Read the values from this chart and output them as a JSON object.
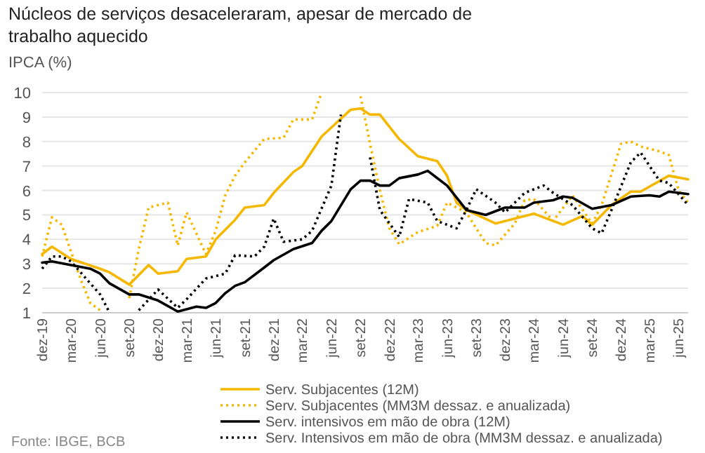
{
  "chart_data": {
    "type": "line",
    "title": "Núcleos de serviços desaceleraram, apesar de mercado de trabalho aquecido",
    "ylabel": "IPCA (%)",
    "annotations": [
      "Fonte: IBGE, BCB"
    ],
    "xlim": [
      "2019-12",
      "2025-07"
    ],
    "xticks": [
      {
        "value": "2019-12",
        "label": "dez-19"
      },
      {
        "value": "2020-03",
        "label": "mar-20"
      },
      {
        "value": "2020-06",
        "label": "jun-20"
      },
      {
        "value": "2020-09",
        "label": "set-20"
      },
      {
        "value": "2020-12",
        "label": "dez-20"
      },
      {
        "value": "2021-03",
        "label": "mar-21"
      },
      {
        "value": "2021-06",
        "label": "jun-21"
      },
      {
        "value": "2021-09",
        "label": "set-21"
      },
      {
        "value": "2021-12",
        "label": "dez-21"
      },
      {
        "value": "2022-03",
        "label": "mar-22"
      },
      {
        "value": "2022-06",
        "label": "jun-22"
      },
      {
        "value": "2022-09",
        "label": "set-22"
      },
      {
        "value": "2022-12",
        "label": "dez-22"
      },
      {
        "value": "2023-03",
        "label": "mar-23"
      },
      {
        "value": "2023-06",
        "label": "jun-23"
      },
      {
        "value": "2023-09",
        "label": "set-23"
      },
      {
        "value": "2023-12",
        "label": "dez-23"
      },
      {
        "value": "2024-03",
        "label": "mar-24"
      },
      {
        "value": "2024-06",
        "label": "jun-24"
      },
      {
        "value": "2024-09",
        "label": "set-24"
      },
      {
        "value": "2024-12",
        "label": "dez-24"
      },
      {
        "value": "2025-03",
        "label": "mar-25"
      },
      {
        "value": "2025-06",
        "label": "jun-25"
      }
    ],
    "ylim": [
      1,
      10
    ],
    "yticks": [
      1,
      2,
      3,
      4,
      5,
      6,
      7,
      8,
      9,
      10
    ],
    "grid": "y",
    "legend": "bottom",
    "marker": "none",
    "series": [
      {
        "name": "Serv. Subjacentes (12M)",
        "color": "#f5b800",
        "line_style": "solid",
        "x": [
          "2019-12",
          "2020-01",
          "2020-03",
          "2020-06",
          "2020-07",
          "2020-09",
          "2020-11",
          "2020-12",
          "2021-02",
          "2021-03",
          "2021-05",
          "2021-06",
          "2021-08",
          "2021-09",
          "2021-11",
          "2021-12",
          "2022-02",
          "2022-03",
          "2022-05",
          "2022-08",
          "2022-09",
          "2022-10",
          "2022-11",
          "2023-01",
          "2023-03",
          "2023-05",
          "2023-06",
          "2023-07",
          "2023-08",
          "2023-11",
          "2024-03",
          "2024-06",
          "2024-08",
          "2024-09",
          "2024-11",
          "2025-01",
          "2025-02",
          "2025-05",
          "2025-07"
        ],
        "values": [
          3.4,
          3.7,
          3.2,
          2.8,
          2.65,
          2.15,
          2.95,
          2.6,
          2.7,
          3.2,
          3.3,
          4.0,
          4.8,
          5.3,
          5.4,
          5.9,
          6.75,
          7.0,
          8.2,
          9.3,
          9.35,
          9.1,
          9.1,
          8.1,
          7.4,
          7.2,
          6.6,
          5.5,
          5.2,
          4.65,
          5.05,
          4.6,
          4.95,
          4.6,
          5.4,
          5.95,
          5.95,
          6.6,
          6.45
        ]
      },
      {
        "name": "Serv. Subjacentes (MM3M dessaz. e anualizada)",
        "color": "#f5b800",
        "line_style": "dotted",
        "x": [
          "2019-12",
          "2020-01",
          "2020-02",
          "2020-03",
          "2020-04",
          "2020-05",
          "2020-06",
          "2020-07",
          "2020-08",
          "2020-09",
          "2020-10",
          "2020-11",
          "2021-01",
          "2021-02",
          "2021-03",
          "2021-05",
          "2021-06",
          "2021-07",
          "2021-08",
          "2021-09",
          "2021-11",
          "2022-01",
          "2022-02",
          "2022-04",
          "2022-05",
          "2022-06",
          "2022-07",
          "2022-08",
          "2022-09",
          "2022-10",
          "2022-11",
          "2022-12",
          "2023-01",
          "2023-03",
          "2023-05",
          "2023-06",
          "2023-08",
          "2023-09",
          "2023-10",
          "2023-11",
          "2024-01",
          "2024-02",
          "2024-03",
          "2024-05",
          "2024-07",
          "2024-09",
          "2024-10",
          "2024-12",
          "2025-01",
          "2025-02",
          "2025-04",
          "2025-05",
          "2025-06",
          "2025-07"
        ],
        "values": [
          3.3,
          4.9,
          4.6,
          3.5,
          2.35,
          1.4,
          1.1,
          null,
          null,
          1.6,
          3.6,
          5.3,
          5.5,
          3.75,
          5.1,
          3.4,
          4.35,
          5.8,
          6.6,
          7.15,
          8.1,
          8.15,
          8.9,
          8.9,
          10,
          null,
          null,
          null,
          9.85,
          7.9,
          6.0,
          4.45,
          3.8,
          4.3,
          4.55,
          5.5,
          5.1,
          4.45,
          3.85,
          3.75,
          4.65,
          5.6,
          5.65,
          4.75,
          5.8,
          4.65,
          5.4,
          7.9,
          8.0,
          7.8,
          7.6,
          7.45,
          6.0,
          5.5
        ]
      },
      {
        "name": "Serv. intensivos em mão de obra (12M)",
        "color": "#000000",
        "line_style": "solid",
        "x": [
          "2019-12",
          "2020-01",
          "2020-03",
          "2020-05",
          "2020-06",
          "2020-07",
          "2020-09",
          "2020-10",
          "2020-12",
          "2021-02",
          "2021-04",
          "2021-05",
          "2021-06",
          "2021-07",
          "2021-08",
          "2021-09",
          "2021-11",
          "2021-12",
          "2022-02",
          "2022-04",
          "2022-05",
          "2022-06",
          "2022-08",
          "2022-09",
          "2022-10",
          "2022-11",
          "2022-12",
          "2023-01",
          "2023-03",
          "2023-04",
          "2023-06",
          "2023-08",
          "2023-10",
          "2023-12",
          "2024-02",
          "2024-03",
          "2024-05",
          "2024-06",
          "2024-07",
          "2024-09",
          "2024-11",
          "2025-01",
          "2025-03",
          "2025-04",
          "2025-05",
          "2025-07"
        ],
        "values": [
          3.05,
          3.1,
          2.95,
          2.8,
          2.6,
          2.2,
          1.75,
          1.75,
          1.5,
          1.05,
          1.25,
          1.2,
          1.4,
          1.8,
          2.1,
          2.25,
          2.85,
          3.15,
          3.6,
          3.85,
          4.35,
          4.75,
          6.05,
          6.4,
          6.4,
          6.2,
          6.2,
          6.5,
          6.65,
          6.8,
          6.2,
          5.2,
          5.0,
          5.3,
          5.3,
          5.5,
          5.6,
          5.75,
          5.7,
          5.25,
          5.4,
          5.75,
          5.8,
          5.75,
          5.95,
          5.85
        ]
      },
      {
        "name": "Serv. Intensivos em mão de obra (MM3M dessaz. e anualizada)",
        "color": "#000000",
        "line_style": "dotted",
        "x": [
          "2019-12",
          "2020-01",
          "2020-02",
          "2020-03",
          "2020-05",
          "2020-06",
          "2020-07",
          "2020-08",
          "2020-09",
          "2020-10",
          "2020-12",
          "2021-02",
          "2021-03",
          "2021-05",
          "2021-07",
          "2021-08",
          "2021-10",
          "2021-11",
          "2021-12",
          "2022-01",
          "2022-03",
          "2022-04",
          "2022-06",
          "2022-07",
          "2022-08",
          "2022-09",
          "2022-10",
          "2022-11",
          "2023-01",
          "2023-02",
          "2023-04",
          "2023-05",
          "2023-07",
          "2023-08",
          "2023-09",
          "2023-11",
          "2023-12",
          "2024-02",
          "2024-04",
          "2024-05",
          "2024-07",
          "2024-09",
          "2024-10",
          "2024-11",
          "2025-01",
          "2025-02",
          "2025-04",
          "2025-05",
          "2025-07"
        ],
        "values": [
          2.8,
          3.3,
          3.3,
          3.1,
          2.2,
          1.75,
          1.0,
          null,
          null,
          1.1,
          1.95,
          1.2,
          1.55,
          2.4,
          2.6,
          3.35,
          3.3,
          3.7,
          4.85,
          3.9,
          4.0,
          4.35,
          6.2,
          9.1,
          null,
          null,
          7.35,
          5.2,
          4.1,
          5.65,
          5.5,
          4.75,
          4.45,
          5.2,
          6.05,
          5.5,
          5.1,
          5.9,
          6.2,
          5.9,
          5.4,
          4.45,
          4.25,
          5.2,
          7.15,
          7.55,
          6.4,
          6.3,
          5.4
        ]
      }
    ]
  }
}
